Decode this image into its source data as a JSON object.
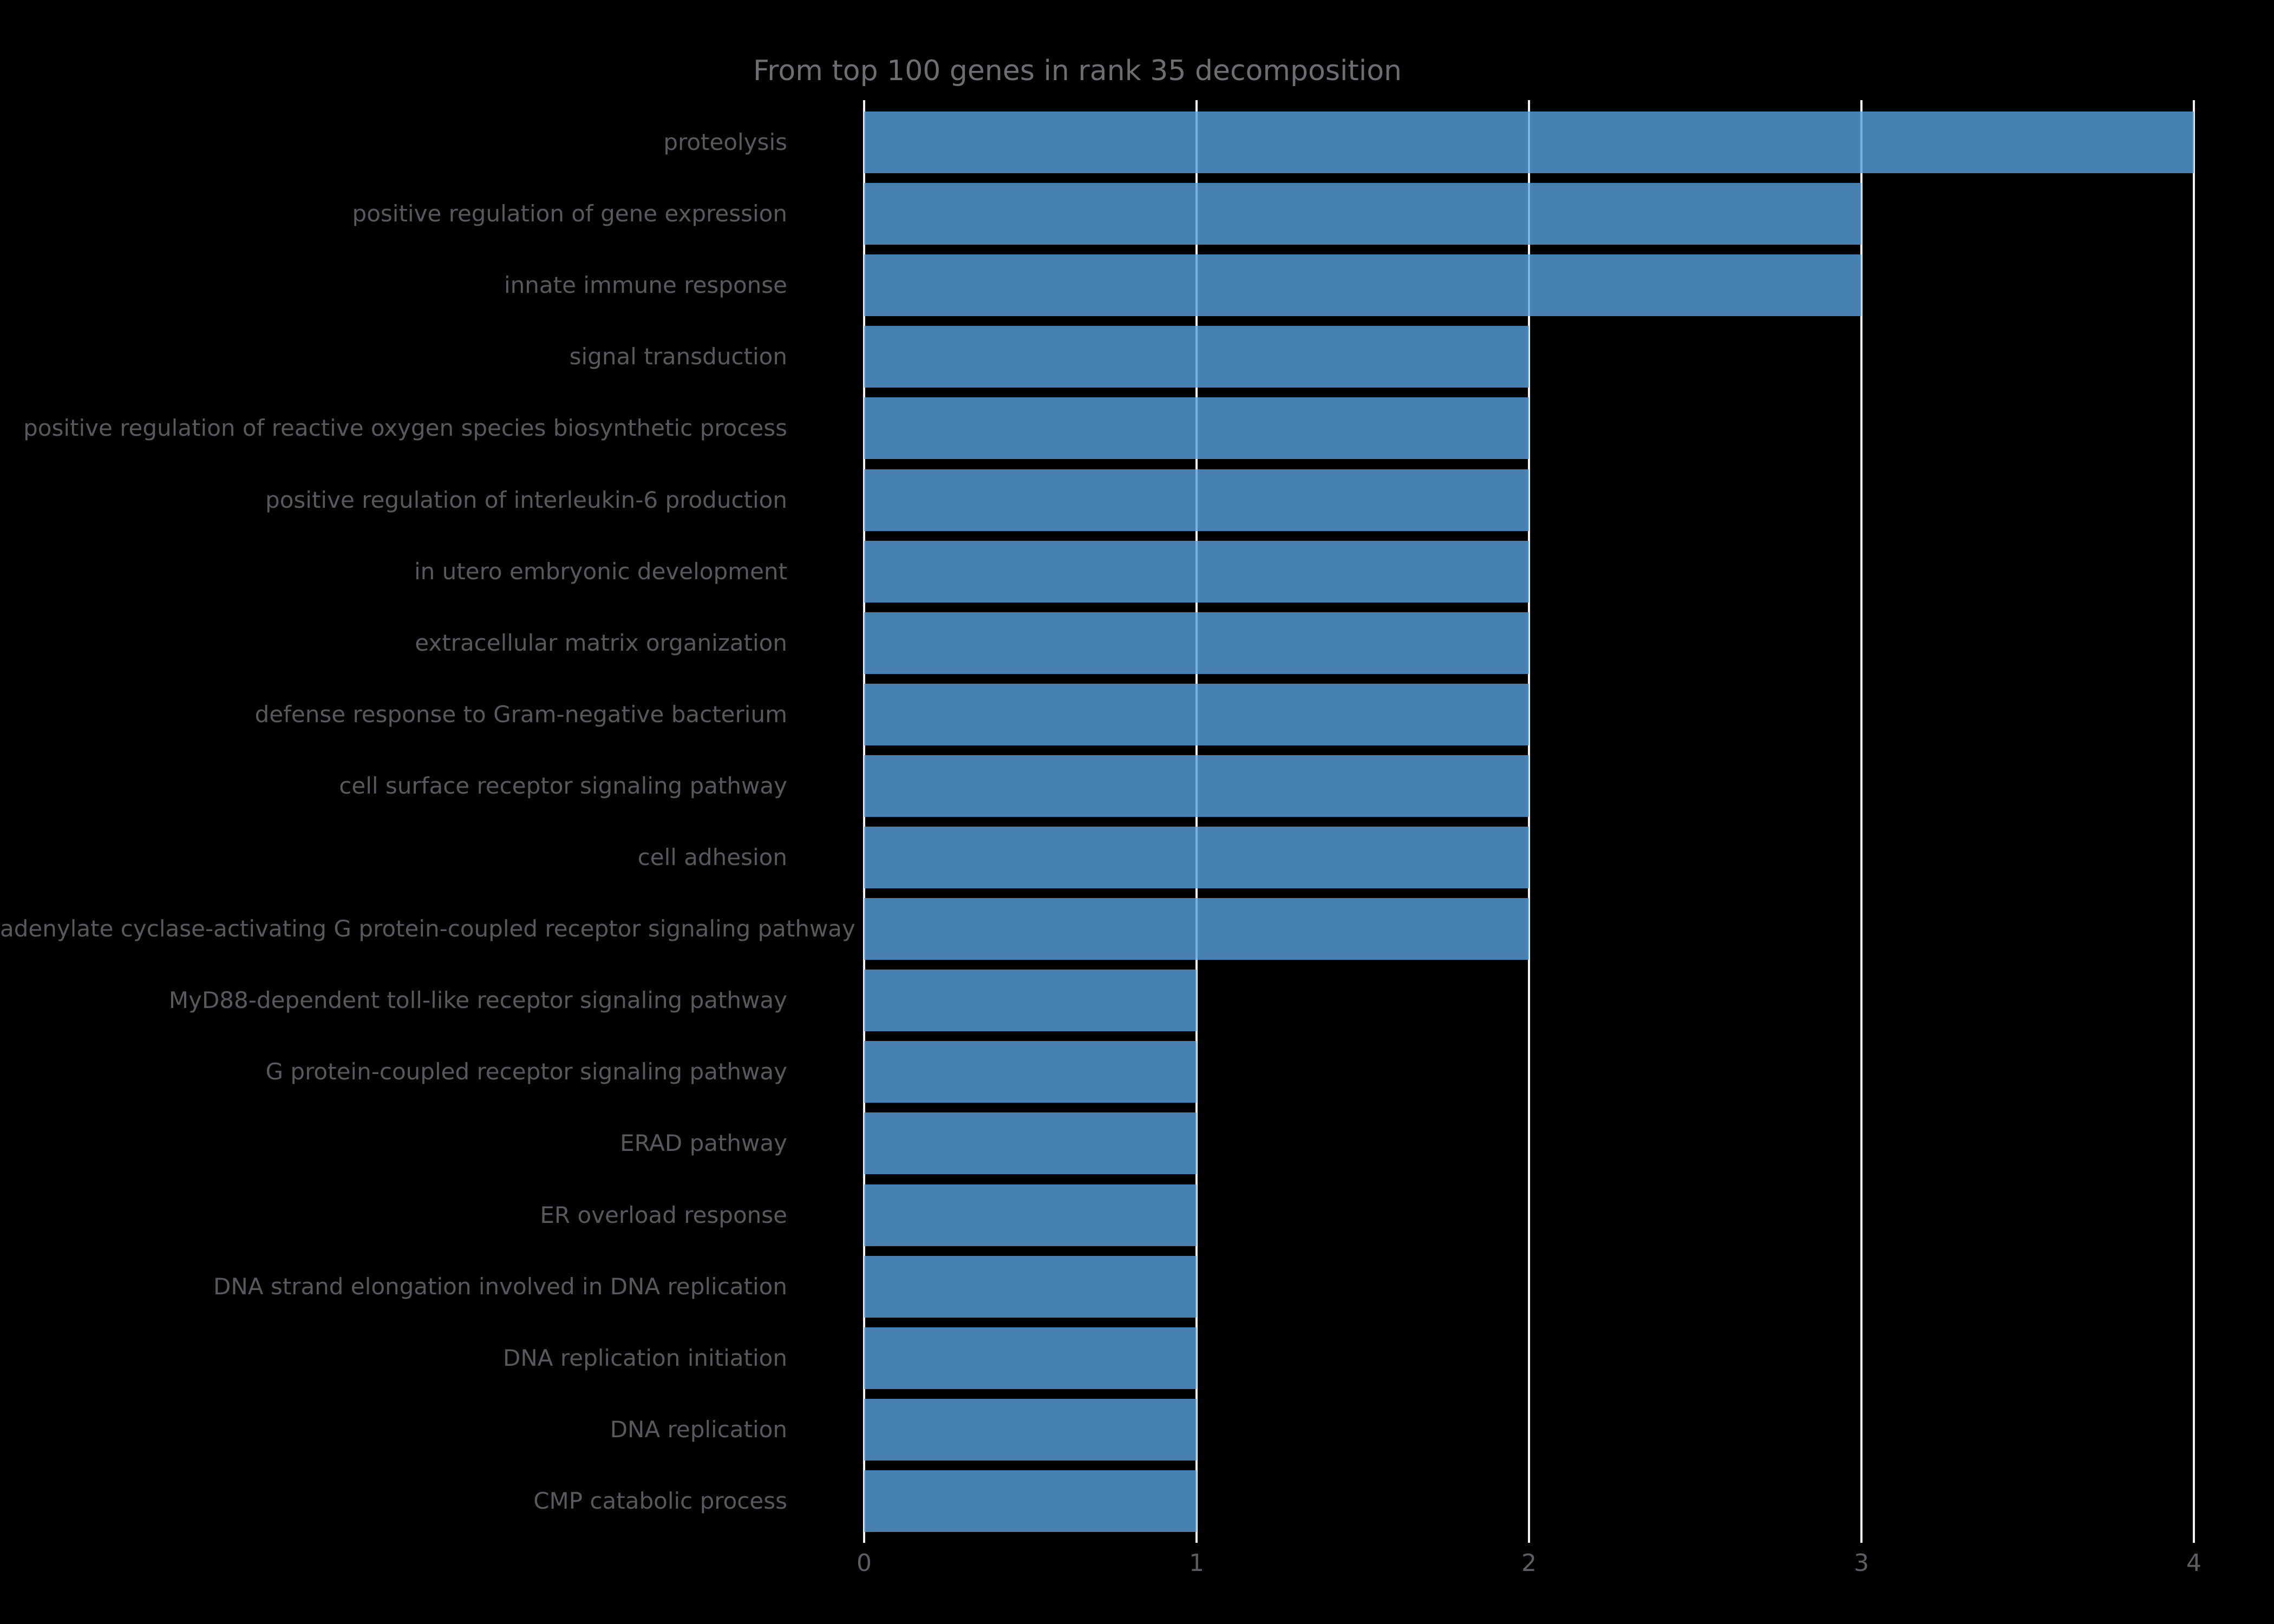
{
  "chart_data": {
    "type": "bar",
    "orientation": "horizontal",
    "title": "From top 100 genes in rank 35 decomposition",
    "categories": [
      "proteolysis",
      "positive regulation of gene expression",
      "innate immune response",
      "signal transduction",
      "positive regulation of reactive oxygen species biosynthetic process",
      "positive regulation of interleukin-6 production",
      "in utero embryonic development",
      "extracellular matrix organization",
      "defense response to Gram-negative bacterium",
      "cell surface receptor signaling pathway",
      "cell adhesion",
      "adenylate cyclase-activating G protein-coupled receptor signaling pathway",
      "MyD88-dependent toll-like receptor signaling pathway",
      "G protein-coupled receptor signaling pathway",
      "ERAD pathway",
      "ER overload response",
      "DNA strand elongation involved in DNA replication",
      "DNA replication initiation",
      "DNA replication",
      "CMP catabolic process"
    ],
    "values": [
      4,
      3,
      3,
      2,
      2,
      2,
      2,
      2,
      2,
      2,
      2,
      2,
      1,
      1,
      1,
      1,
      1,
      1,
      1,
      1
    ],
    "xlabel": "",
    "ylabel": "",
    "xlim": [
      0,
      4
    ],
    "xticks": [
      "0",
      "1",
      "2",
      "3",
      "4"
    ],
    "grid": "vertical",
    "legend": "none",
    "colors": {
      "background": "#000000",
      "bar_effective": "#4682B4",
      "gridline": "#F2F2F2",
      "title_text": "#6E6E70",
      "category_text": "#59595B",
      "tick_text": "#5E5E60"
    }
  }
}
